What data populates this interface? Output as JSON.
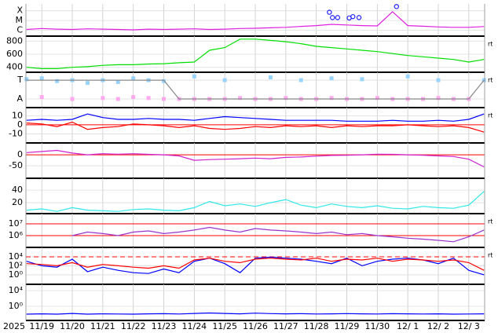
{
  "x_axis": {
    "year": "2025",
    "xlim": [
      0.48,
      15.52
    ],
    "xticks": [
      {
        "value": 1,
        "label": "11/19"
      },
      {
        "value": 2,
        "label": "11/20"
      },
      {
        "value": 3,
        "label": "11/21"
      },
      {
        "value": 4,
        "label": "11/22"
      },
      {
        "value": 5,
        "label": "11/23"
      },
      {
        "value": 6,
        "label": "11/24"
      },
      {
        "value": 7,
        "label": "11/25"
      },
      {
        "value": 8,
        "label": "11/26"
      },
      {
        "value": 9,
        "label": "11/27"
      },
      {
        "value": 10,
        "label": "11/28"
      },
      {
        "value": 11,
        "label": "11/29"
      },
      {
        "value": 12,
        "label": "11/30"
      },
      {
        "value": 13,
        "label": "12/ 1"
      },
      {
        "value": 14,
        "label": "12/ 2"
      },
      {
        "value": 15,
        "label": "12/ 3"
      }
    ]
  },
  "chart_data": [
    {
      "type": "line",
      "log": true,
      "ylim": [
        2.5e-07,
        0.0005
      ],
      "yticks": [
        {
          "value": 0.0001,
          "label": "X"
        },
        {
          "value": 1e-05,
          "label": "M"
        },
        {
          "value": 1e-06,
          "label": "C"
        }
      ],
      "x": [
        0.5,
        1,
        1.5,
        2,
        2.5,
        3,
        3.5,
        4,
        4.5,
        5,
        5.5,
        6,
        6.5,
        7,
        7.5,
        8,
        8.5,
        9,
        9.5,
        10,
        10.5,
        11,
        11.5,
        12,
        12.5,
        13,
        13.5,
        14,
        14.5,
        15,
        15.5
      ],
      "series": [
        {
          "mode": "line",
          "color": "#e020e0",
          "values": [
            1.2e-06,
            1.5e-06,
            1.3e-06,
            1.2e-06,
            1.4e-06,
            1.3e-06,
            1.2e-06,
            1.1e-06,
            1.3e-06,
            1.2e-06,
            1.3e-06,
            1.4e-06,
            1.2e-06,
            1.3e-06,
            1.5e-06,
            1.6e-06,
            1.8e-06,
            2e-06,
            2.5e-06,
            3e-06,
            4e-06,
            3.5e-06,
            3e-06,
            2.8e-06,
            8e-05,
            3e-06,
            2.6e-06,
            2.2e-06,
            2e-06,
            2e-06,
            2.4e-06
          ]
        },
        {
          "mode": "markers",
          "color": "#2020ff",
          "x": [
            10.43,
            10.53,
            10.7,
            11.08,
            11.2,
            11.4,
            12.63
          ],
          "values": [
            7e-05,
            2e-05,
            2e-05,
            1.8e-05,
            2.5e-05,
            2e-05,
            0.00027
          ]
        }
      ]
    },
    {
      "type": "line",
      "ylim": [
        325,
        875
      ],
      "yticks": [
        800,
        600,
        400
      ],
      "note": "rt",
      "x": [
        0.5,
        1,
        1.5,
        2,
        2.5,
        3,
        3.5,
        4,
        4.5,
        5,
        5.5,
        6,
        6.5,
        7,
        7.5,
        8,
        8.5,
        9,
        9.5,
        10,
        10.5,
        11,
        11.5,
        12,
        12.5,
        13,
        13.5,
        14,
        14.5,
        15,
        15.5
      ],
      "series": [
        {
          "mode": "line",
          "color": "#00e000",
          "values": [
            400,
            380,
            380,
            400,
            410,
            430,
            440,
            440,
            450,
            455,
            470,
            480,
            660,
            700,
            830,
            830,
            810,
            790,
            760,
            720,
            700,
            680,
            660,
            640,
            610,
            580,
            560,
            540,
            520,
            480,
            520
          ]
        }
      ]
    },
    {
      "type": "line",
      "ylim": [
        -0.46,
        1.42
      ],
      "yticks": [
        {
          "value": 1,
          "label": "T"
        },
        {
          "value": 0,
          "label": "A"
        }
      ],
      "note": "rt",
      "x": [
        0.5,
        1,
        1.5,
        2,
        2.5,
        3,
        3.5,
        4,
        4.5,
        5,
        5.5,
        6,
        6.5,
        7,
        7.5,
        8,
        8.5,
        9,
        9.5,
        10,
        10.5,
        11,
        11.5,
        12,
        12.5,
        13,
        13.5,
        14,
        14.5,
        15,
        15.5
      ],
      "series": [
        {
          "mode": "points",
          "color": "#99d4ff",
          "values": [
            1.05,
            1.1,
            0.95,
            1.0,
            0.85,
            1.0,
            0.9,
            1.1,
            1.0,
            0.95,
            null,
            1.2,
            null,
            1.0,
            null,
            null,
            1.15,
            null,
            1.0,
            null,
            1.1,
            null,
            1.05,
            null,
            null,
            1.2,
            null,
            1.0,
            null,
            null,
            1.0
          ]
        },
        {
          "mode": "points",
          "color": "#ffaaee",
          "values": [
            null,
            0.1,
            null,
            0,
            null,
            0.05,
            0,
            0.1,
            0.05,
            0,
            0,
            0,
            0,
            0,
            0.05,
            0,
            0,
            0.05,
            0,
            0,
            0.05,
            0,
            0,
            0.05,
            0,
            0,
            0,
            0.05,
            0,
            0,
            null
          ]
        },
        {
          "mode": "line",
          "color": "#888888",
          "values": [
            1,
            1,
            1,
            1,
            1,
            1,
            1,
            1,
            1,
            1,
            0,
            0,
            0,
            0,
            0,
            0,
            0,
            0,
            0,
            0,
            0,
            0,
            0,
            0,
            0,
            0,
            0,
            0,
            0,
            0,
            1
          ]
        }
      ]
    },
    {
      "type": "line",
      "ylim": [
        -20,
        19
      ],
      "yticks": [
        10,
        0,
        -10
      ],
      "note": "rt",
      "ref_lines": [
        {
          "value": 0,
          "color": "#ff0000"
        }
      ],
      "x": [
        0.5,
        1,
        1.5,
        2,
        2.5,
        3,
        3.5,
        4,
        4.5,
        5,
        5.5,
        6,
        6.5,
        7,
        7.5,
        8,
        8.5,
        9,
        9.5,
        10,
        10.5,
        11,
        11.5,
        12,
        12.5,
        13,
        13.5,
        14,
        14.5,
        15,
        15.5
      ],
      "series": [
        {
          "mode": "line",
          "color": "#0000ff",
          "values": [
            5,
            6,
            5,
            6,
            12,
            8,
            6,
            6,
            7,
            6,
            6,
            5,
            7,
            9,
            8,
            7,
            6,
            5,
            5,
            5,
            5,
            4,
            4,
            4,
            5,
            4,
            4,
            5,
            4,
            6,
            12
          ]
        },
        {
          "mode": "line",
          "color": "#ff0000",
          "values": [
            2,
            1,
            -2,
            3,
            -5,
            -3,
            -2,
            1,
            0,
            -1,
            -3,
            -1,
            -4,
            -5,
            -4,
            -2,
            -3,
            -1,
            -2,
            -1,
            -3,
            -1,
            -2,
            -1,
            -1,
            0,
            -1,
            -2,
            -1,
            -3,
            -8
          ]
        }
      ]
    },
    {
      "type": "line",
      "ylim": [
        -107,
        54
      ],
      "yticks": [
        0,
        -50
      ],
      "ref_lines": [
        {
          "value": 0,
          "color": "#ff0000"
        }
      ],
      "x": [
        0.5,
        1,
        1.5,
        2,
        2.5,
        3,
        3.5,
        4,
        4.5,
        5,
        5.5,
        6,
        6.5,
        7,
        7.5,
        8,
        8.5,
        9,
        9.5,
        10,
        10.5,
        11,
        11.5,
        12,
        12.5,
        13,
        13.5,
        14,
        14.5,
        15,
        15.5
      ],
      "series": [
        {
          "mode": "line",
          "color": "#d020d0",
          "values": [
            10,
            15,
            20,
            8,
            0,
            5,
            3,
            5,
            2,
            0,
            -5,
            -25,
            -22,
            -20,
            -18,
            -15,
            -18,
            -12,
            -10,
            -6,
            -3,
            -2,
            0,
            3,
            2,
            0,
            -2,
            -5,
            -8,
            -20,
            -55
          ]
        }
      ]
    },
    {
      "type": "line",
      "ylim": [
        2.5,
        59
      ],
      "yticks": [
        40,
        20
      ],
      "x": [
        0.5,
        1,
        1.5,
        2,
        2.5,
        3,
        3.5,
        4,
        4.5,
        5,
        5.5,
        6,
        6.5,
        7,
        7.5,
        8,
        8.5,
        9,
        9.5,
        10,
        10.5,
        11,
        11.5,
        12,
        12.5,
        13,
        13.5,
        14,
        14.5,
        15,
        15.5
      ],
      "series": [
        {
          "mode": "line",
          "color": "#30e8e8",
          "values": [
            8,
            10,
            6,
            12,
            8,
            7,
            6,
            9,
            10,
            8,
            7,
            12,
            22,
            15,
            18,
            14,
            20,
            25,
            16,
            12,
            18,
            14,
            12,
            15,
            11,
            10,
            14,
            12,
            11,
            16,
            38
          ]
        }
      ]
    },
    {
      "type": "line",
      "log": true,
      "ylim": [
        100000,
        74000000
      ],
      "note": "rt",
      "yticks": [
        {
          "value": 10000000,
          "label": "10⁷"
        },
        {
          "value": 1000000,
          "label": "10⁶"
        }
      ],
      "ref_lines": [
        {
          "value": 10000000,
          "color": "#ff0000"
        },
        {
          "value": 1000000,
          "color": "#ff0000"
        }
      ],
      "x": [
        0.5,
        1,
        1.5,
        2,
        2.5,
        3,
        3.5,
        4,
        4.5,
        5,
        5.5,
        6,
        6.5,
        7,
        7.5,
        8,
        8.5,
        9,
        9.5,
        10,
        10.5,
        11,
        11.5,
        12,
        12.5,
        13,
        13.5,
        14,
        14.5,
        15,
        15.5
      ],
      "series": [
        {
          "mode": "line",
          "color": "#9933cc",
          "values": [
            null,
            null,
            null,
            1000000,
            2000000,
            1500000,
            1000000,
            2000000,
            2500000,
            1500000,
            2000000,
            3000000,
            5000000,
            3000000,
            2000000,
            4000000,
            3000000,
            2500000,
            2000000,
            1500000,
            2000000,
            1200000,
            1500000,
            1000000,
            800000,
            600000,
            500000,
            400000,
            300000,
            800000,
            3000000
          ]
        }
      ]
    },
    {
      "type": "line",
      "log": true,
      "ylim": [
        0.008,
        1200000
      ],
      "note": "rt",
      "yticks": [
        {
          "value": 10000,
          "label": "10⁴"
        },
        {
          "value": 100,
          "label": "10²"
        },
        {
          "value": 1,
          "label": "10⁰"
        }
      ],
      "ref_lines": [
        {
          "value": 10000,
          "color": "#ff0000",
          "dash": true
        }
      ],
      "x": [
        0.5,
        1,
        1.5,
        2,
        2.5,
        3,
        3.5,
        4,
        4.5,
        5,
        5.5,
        6,
        6.5,
        7,
        7.5,
        8,
        8.5,
        9,
        9.5,
        10,
        10.5,
        11,
        11.5,
        12,
        12.5,
        13,
        13.5,
        14,
        14.5,
        15,
        15.5
      ],
      "series": [
        {
          "mode": "line",
          "color": "#0000ff",
          "values": [
            1000,
            100,
            50,
            3000,
            5,
            50,
            10,
            3,
            2,
            20,
            3,
            1000,
            5000,
            300,
            3,
            5000,
            8000,
            5000,
            3000,
            1000,
            300,
            5000,
            100,
            1000,
            3000,
            5000,
            2000,
            300,
            5000,
            10,
            1
          ]
        },
        {
          "mode": "line",
          "color": "#ff0000",
          "values": [
            300,
            200,
            100,
            500,
            50,
            200,
            100,
            50,
            30,
            100,
            30,
            2000,
            5000,
            1000,
            500,
            3000,
            5000,
            3000,
            2000,
            5000,
            1000,
            3000,
            2000,
            5000,
            1000,
            3000,
            2000,
            1000,
            2000,
            500,
            10
          ]
        }
      ]
    },
    {
      "type": "line",
      "log": true,
      "ylim": [
        0.00025,
        400000
      ],
      "yticks": [
        {
          "value": 10000,
          "label": "10⁴"
        },
        {
          "value": 1,
          "label": "10⁰"
        }
      ],
      "x": [
        0.5,
        1,
        1.5,
        2,
        2.5,
        3,
        3.5,
        4,
        4.5,
        5,
        5.5,
        6,
        6.5,
        7,
        7.5,
        8,
        8.5,
        9,
        9.5,
        10,
        10.5,
        11,
        11.5,
        12,
        12.5,
        13,
        13.5,
        14,
        14.5,
        15,
        15.5
      ],
      "series": [
        {
          "mode": "line",
          "color": "#0000ff",
          "values": [
            0.01,
            0.012,
            0.01,
            0.015,
            0.01,
            0.012,
            0.011,
            0.01,
            0.012,
            0.013,
            0.011,
            0.015,
            0.02,
            0.015,
            0.012,
            0.018,
            0.014,
            0.012,
            0.013,
            0.011,
            0.012,
            0.014,
            0.012,
            0.011,
            0.013,
            0.012,
            0.011,
            0.012,
            0.01,
            0.011,
            0.012
          ]
        }
      ]
    }
  ]
}
